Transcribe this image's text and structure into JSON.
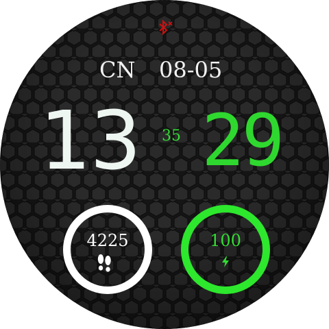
{
  "status": {
    "bluetooth_icon": "bluetooth-disconnected-icon",
    "bluetooth_color": "#cc1111"
  },
  "date": {
    "language": "CN",
    "value": "08-05"
  },
  "time": {
    "hours": "13",
    "minutes": "29",
    "seconds": "35",
    "hours_color": "#eef6f2",
    "minutes_color": "#2fd82f"
  },
  "steps": {
    "value": "4225",
    "icon": "footsteps-icon",
    "ring_color": "#ffffff"
  },
  "battery": {
    "value": "100",
    "icon": "charging-bolt-icon",
    "ring_color": "#2de82d"
  }
}
